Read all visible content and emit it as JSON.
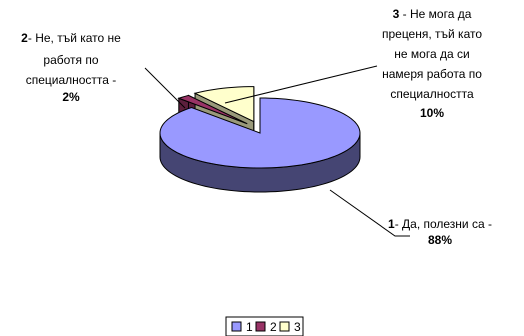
{
  "chart_data": {
    "type": "pie",
    "categories": [
      "1",
      "2",
      "3"
    ],
    "values": [
      88,
      2,
      10
    ],
    "colors": [
      "#9999ff",
      "#993366",
      "#ffffcc"
    ],
    "style": "3d-exploded",
    "labels": [
      {
        "num": "1",
        "lines": [
          "- Да, полезни са -"
        ],
        "value_text": "88%"
      },
      {
        "num": "2",
        "lines": [
          "- Не, тъй като не",
          "работя по",
          "специалността -"
        ],
        "value_text": "2%"
      },
      {
        "num": "3",
        "lines": [
          " - Не мога да",
          "преценя, тъй като",
          "не мога да си",
          "намеря работа по",
          "специалността"
        ],
        "value_text": "10%"
      }
    ],
    "legend": {
      "position": "bottom",
      "items": [
        "1",
        "2",
        "3"
      ]
    }
  }
}
